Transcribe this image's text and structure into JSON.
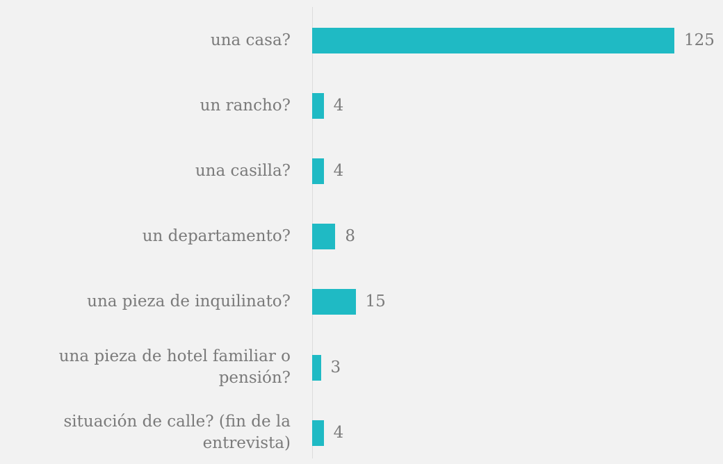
{
  "chart_data": {
    "type": "bar",
    "orientation": "horizontal",
    "categories": [
      "una casa?",
      "un rancho?",
      "una casilla?",
      "un departamento?",
      "una pieza de inquilinato?",
      "una pieza de hotel familiar o pensión?",
      "situación de calle? (fin de la entrevista)"
    ],
    "values": [
      125,
      4,
      4,
      8,
      15,
      3,
      4
    ],
    "color": "#1fbac4",
    "xlim": [
      0,
      125
    ]
  }
}
